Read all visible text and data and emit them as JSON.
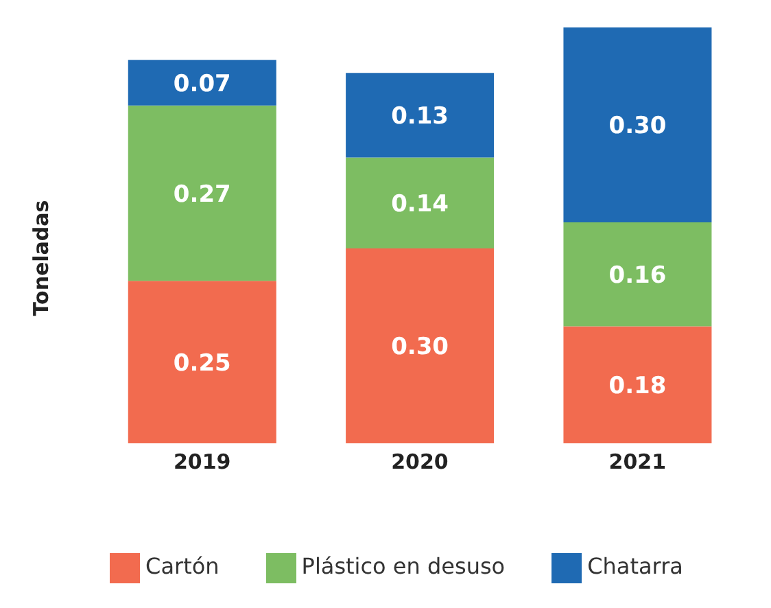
{
  "chart_data": {
    "type": "bar",
    "stacked": true,
    "ylabel": "Toneladas",
    "categories": [
      "2019",
      "2020",
      "2021"
    ],
    "series": [
      {
        "name": "Cartón",
        "color": "#f26b4f",
        "values": [
          0.25,
          0.3,
          0.18
        ],
        "value_labels": [
          "0.25",
          "0.30",
          "0.18"
        ]
      },
      {
        "name": "Plástico en desuso",
        "color": "#7dbd62",
        "values": [
          0.27,
          0.14,
          0.16
        ],
        "value_labels": [
          "0.27",
          "0.14",
          "0.16"
        ]
      },
      {
        "name": "Chatarra",
        "color": "#1f6ab3",
        "values": [
          0.07,
          0.13,
          0.3
        ],
        "value_labels": [
          "0.07",
          "0.13",
          "0.30"
        ]
      }
    ],
    "legend": "bottom",
    "grid": false
  }
}
